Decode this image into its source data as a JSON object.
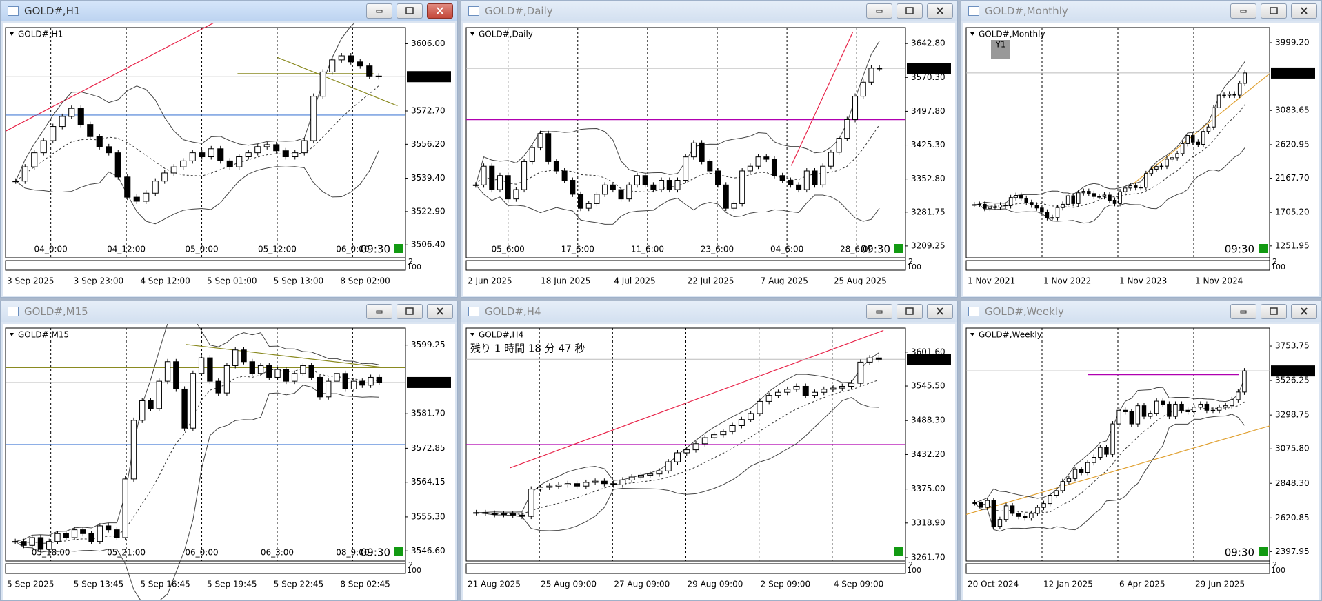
{
  "windows": [
    {
      "title": "GOLD#,H1",
      "label": "GOLD#,H1",
      "current_price": 3589.68,
      "timer": "09:30",
      "sub_labels": [
        "2",
        "100"
      ],
      "ylim": [
        3500,
        3614
      ],
      "price_ticks": [
        {
          "value": 3606,
          "label": "3606.00"
        },
        {
          "value": 3572.7,
          "label": "3572.70"
        },
        {
          "value": 3556.2,
          "label": "3556.20"
        },
        {
          "value": 3539.4,
          "label": "3539.40"
        },
        {
          "value": 3522.9,
          "label": "3522.90"
        },
        {
          "value": 3506.4,
          "label": "3506.40"
        }
      ],
      "top_time_labels": [
        "04_0:00",
        "04_12:00",
        "05_0:00",
        "05_12:00",
        "06_0:00"
      ],
      "bottom_time_labels": [
        "3 Sep 2025",
        "3 Sep 23:00",
        "4 Sep 12:00",
        "5 Sep 01:00",
        "5 Sep 13:00",
        "8 Sep 02:00"
      ],
      "closes": [
        3538,
        3545,
        3552,
        3558,
        3565,
        3570,
        3574,
        3566,
        3560,
        3555,
        3552,
        3540,
        3530,
        3528,
        3532,
        3538,
        3542,
        3545,
        3548,
        3552,
        3550,
        3554,
        3548,
        3545,
        3550,
        3552,
        3555,
        3556,
        3553,
        3550,
        3552,
        3558,
        3580,
        3592,
        3598,
        3600,
        3597,
        3595,
        3590,
        3589.68
      ]
    },
    {
      "title": "GOLD#,Daily",
      "label": "GOLD#,Daily",
      "current_price": 3589.68,
      "timer": "09:30",
      "sub_labels": [
        "2",
        "100"
      ],
      "ylim": [
        3184,
        3677
      ],
      "price_ticks": [
        {
          "value": 3642.8,
          "label": "3642.80"
        },
        {
          "value": 3570.3,
          "label": "3570.30"
        },
        {
          "value": 3497.8,
          "label": "3497.80"
        },
        {
          "value": 3425.3,
          "label": "3425.30"
        },
        {
          "value": 3352.8,
          "label": "3352.80"
        },
        {
          "value": 3281.75,
          "label": "3281.75"
        },
        {
          "value": 3209.25,
          "label": "3209.25"
        }
      ],
      "top_time_labels": [
        "05_6:00",
        "17_6:00",
        "11_6:00",
        "23_6:00",
        "04_6:00",
        "28_6:00"
      ],
      "bottom_time_labels": [
        "2 Jun 2025",
        "18 Jun 2025",
        "4 Jul 2025",
        "22 Jul 2025",
        "7 Aug 2025",
        "25 Aug 2025"
      ],
      "closes": [
        3340,
        3380,
        3330,
        3360,
        3310,
        3330,
        3390,
        3420,
        3450,
        3390,
        3370,
        3350,
        3320,
        3290,
        3300,
        3320,
        3340,
        3330,
        3310,
        3340,
        3360,
        3340,
        3330,
        3350,
        3330,
        3350,
        3400,
        3430,
        3390,
        3370,
        3340,
        3290,
        3300,
        3370,
        3380,
        3400,
        3395,
        3360,
        3350,
        3340,
        3330,
        3370,
        3340,
        3380,
        3410,
        3440,
        3480,
        3530,
        3560,
        3590,
        3589.68
      ]
    },
    {
      "title": "GOLD#,Monthly",
      "label": "GOLD#,Monthly",
      "button": "Y1",
      "current_price": 3589.68,
      "timer": "09:30",
      "sub_labels": [
        "2",
        "100"
      ],
      "ylim": [
        1092,
        4204
      ],
      "price_ticks": [
        {
          "value": 3999.2,
          "label": "3999.20"
        },
        {
          "value": 3083.65,
          "label": "3083.65"
        },
        {
          "value": 2620.95,
          "label": "2620.95"
        },
        {
          "value": 2167.7,
          "label": "2167.70"
        },
        {
          "value": 1705.2,
          "label": "1705.20"
        },
        {
          "value": 1251.95,
          "label": "1251.95"
        }
      ],
      "top_time_labels": [],
      "bottom_time_labels": [
        "1 Nov 2021",
        "1 Nov 2022",
        "1 Nov 2023",
        "1 Nov 2024"
      ],
      "closes": [
        1810,
        1815,
        1760,
        1780,
        1775,
        1805,
        1795,
        1905,
        1935,
        1895,
        1840,
        1805,
        1765,
        1710,
        1635,
        1635,
        1770,
        1815,
        1930,
        1825,
        1970,
        1990,
        1960,
        1920,
        1920,
        1940,
        1870,
        1825,
        1985,
        2035,
        2065,
        2040,
        2045,
        2230,
        2290,
        2325,
        2330,
        2425,
        2445,
        2500,
        2635,
        2745,
        2655,
        2625,
        2800,
        2860,
        3120,
        3290,
        3290,
        3305,
        3290,
        3450,
        3589.68
      ]
    },
    {
      "title": "GOLD#,M15",
      "label": "GOLD#,M15",
      "current_price": 3589.68,
      "timer": "09:30",
      "sub_labels": [
        "2",
        "100"
      ],
      "ylim": [
        3544,
        3603.6
      ],
      "price_ticks": [
        {
          "value": 3599.25,
          "label": "3599.25"
        },
        {
          "value": 3581.7,
          "label": "3581.70"
        },
        {
          "value": 3572.85,
          "label": "3572.85"
        },
        {
          "value": 3564.15,
          "label": "3564.15"
        },
        {
          "value": 3555.3,
          "label": "3555.30"
        },
        {
          "value": 3546.6,
          "label": "3546.60"
        }
      ],
      "top_time_labels": [
        "05_18:00",
        "05_21:00",
        "06_0:00",
        "06_3:00",
        "08_9:00"
      ],
      "bottom_time_labels": [
        "5 Sep 2025",
        "5 Sep 13:45",
        "5 Sep 16:45",
        "5 Sep 19:45",
        "5 Sep 22:45",
        "8 Sep 02:45"
      ],
      "closes": [
        3549,
        3548,
        3550,
        3547,
        3549,
        3551,
        3550,
        3552,
        3551,
        3549,
        3553,
        3552,
        3550,
        3565,
        3580,
        3585,
        3583,
        3590,
        3595,
        3588,
        3578,
        3592,
        3596,
        3590,
        3587,
        3594,
        3598,
        3595,
        3592,
        3594,
        3591,
        3593,
        3590,
        3592,
        3594,
        3591,
        3586,
        3590,
        3592,
        3588,
        3590,
        3589,
        3591,
        3589.68
      ]
    },
    {
      "title": "GOLD#,H4",
      "label": "GOLD#,H4",
      "annotation": "残り 1 時間 18 分 47 秒",
      "current_price": 3589.68,
      "timer": "",
      "sub_labels": [
        "2",
        "100"
      ],
      "ylim": [
        3256,
        3641.3
      ],
      "price_ticks": [
        {
          "value": 3601.6,
          "label": "3601.60"
        },
        {
          "value": 3545.5,
          "label": "3545.50"
        },
        {
          "value": 3488.3,
          "label": "3488.30"
        },
        {
          "value": 3432.2,
          "label": "3432.20"
        },
        {
          "value": 3375,
          "label": "3375.00"
        },
        {
          "value": 3318.9,
          "label": "3318.90"
        },
        {
          "value": 3261.7,
          "label": "3261.70"
        }
      ],
      "top_time_labels": [],
      "bottom_time_labels": [
        "21 Aug 2025",
        "25 Aug 09:00",
        "27 Aug 09:00",
        "29 Aug 09:00",
        "2 Sep 09:00",
        "4 Sep 09:00"
      ],
      "closes": [
        3336,
        3335,
        3333,
        3334,
        3332,
        3330,
        3375,
        3378,
        3380,
        3382,
        3384,
        3380,
        3386,
        3388,
        3384,
        3382,
        3390,
        3395,
        3398,
        3400,
        3405,
        3420,
        3435,
        3440,
        3450,
        3460,
        3465,
        3470,
        3480,
        3490,
        3500,
        3520,
        3530,
        3535,
        3540,
        3545,
        3530,
        3535,
        3540,
        3542,
        3545,
        3550,
        3585,
        3592,
        3589.68
      ]
    },
    {
      "title": "GOLD#,Weekly",
      "label": "GOLD#,Weekly",
      "current_price": 3589.68,
      "timer": "09:30",
      "sub_labels": [
        "2",
        "100"
      ],
      "ylim": [
        2336,
        3872
      ],
      "price_ticks": [
        {
          "value": 3753.75,
          "label": "3753.75"
        },
        {
          "value": 3526.25,
          "label": "3526.25"
        },
        {
          "value": 3298.75,
          "label": "3298.75"
        },
        {
          "value": 3075.8,
          "label": "3075.80"
        },
        {
          "value": 2848.3,
          "label": "2848.30"
        },
        {
          "value": 2620.85,
          "label": "2620.85"
        },
        {
          "value": 2397.95,
          "label": "2397.95"
        }
      ],
      "top_time_labels": [],
      "bottom_time_labels": [
        "20 Oct 2024",
        "12 Jan 2025",
        "6 Apr 2025",
        "29 Jun 2025"
      ],
      "closes": [
        2720,
        2690,
        2735,
        2565,
        2610,
        2700,
        2650,
        2630,
        2620,
        2650,
        2690,
        2715,
        2770,
        2800,
        2860,
        2880,
        2940,
        2920,
        2985,
        3020,
        3085,
        3040,
        3240,
        3330,
        3320,
        3240,
        3360,
        3290,
        3310,
        3390,
        3370,
        3290,
        3370,
        3330,
        3320,
        3350,
        3370,
        3330,
        3330,
        3350,
        3360,
        3400,
        3450,
        3589.68
      ]
    }
  ]
}
